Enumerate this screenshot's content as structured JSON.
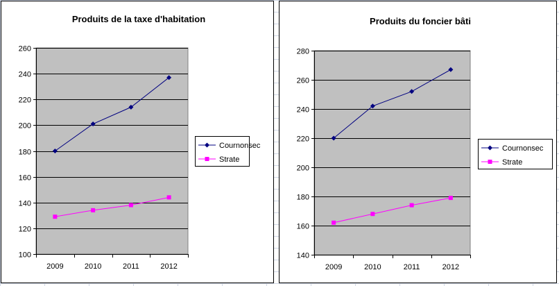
{
  "chart_data": [
    {
      "type": "line",
      "title": "Produits de la taxe d'habitation",
      "categories": [
        "2009",
        "2010",
        "2011",
        "2012"
      ],
      "ylim": [
        100,
        260
      ],
      "yticks": [
        "100",
        "120",
        "140",
        "160",
        "180",
        "200",
        "220",
        "240",
        "260"
      ],
      "grid": true,
      "legend_position": "right",
      "series": [
        {
          "name": "Cournonsec",
          "values": [
            180,
            201,
            214,
            237
          ],
          "color": "#000080",
          "marker": "diamond"
        },
        {
          "name": "Strate",
          "values": [
            129,
            134,
            138,
            144
          ],
          "color": "#ff00ff",
          "marker": "square"
        }
      ],
      "plot_background": "#c0c0c0"
    },
    {
      "type": "line",
      "title": "Produits du foncier bâti",
      "categories": [
        "2009",
        "2010",
        "2011",
        "2012"
      ],
      "ylim": [
        140,
        280
      ],
      "yticks": [
        "140",
        "160",
        "180",
        "200",
        "220",
        "240",
        "260",
        "280"
      ],
      "grid": true,
      "legend_position": "right",
      "series": [
        {
          "name": "Cournonsec",
          "values": [
            220,
            242,
            252,
            267
          ],
          "color": "#000080",
          "marker": "diamond"
        },
        {
          "name": "Strate",
          "values": [
            162,
            168,
            174,
            179
          ],
          "color": "#ff00ff",
          "marker": "square"
        }
      ],
      "plot_background": "#c0c0c0"
    }
  ]
}
